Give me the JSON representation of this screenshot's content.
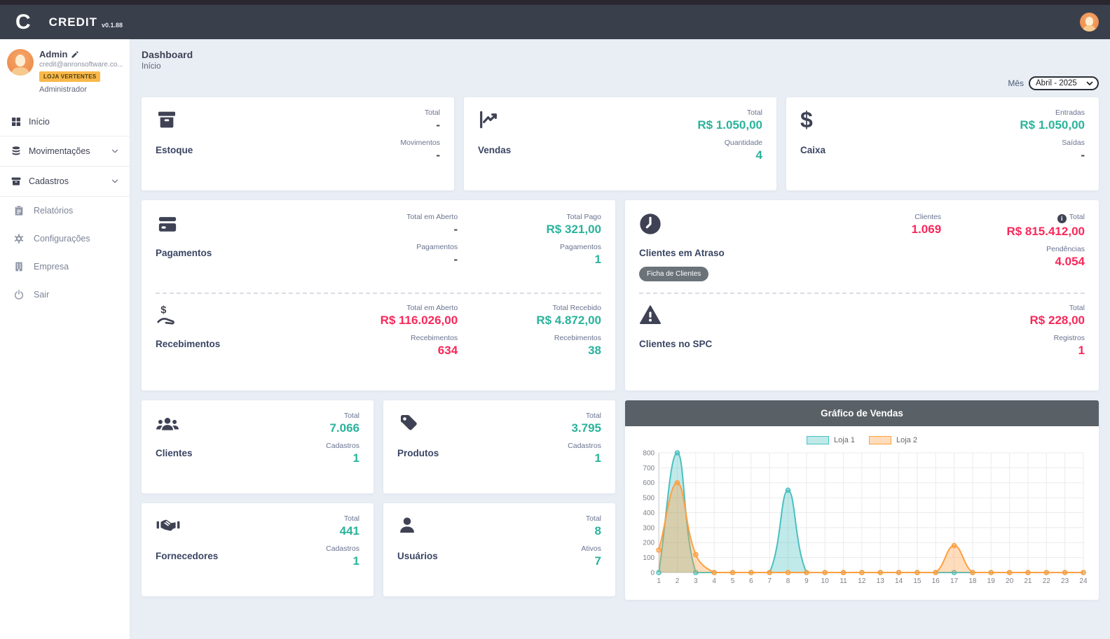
{
  "header": {
    "logo_letter": "C",
    "app_name": "CREDIT",
    "version": "v0.1.88"
  },
  "sidebar": {
    "user": {
      "name": "Admin",
      "email": "credit@anronsoftware.co...",
      "store_badge": "LOJA VERTENTES",
      "role": "Administrador"
    },
    "items": [
      {
        "label": "Início",
        "icon": "grid-icon"
      },
      {
        "label": "Movimentações",
        "icon": "database-icon"
      },
      {
        "label": "Cadastros",
        "icon": "box-icon"
      },
      {
        "label": "Relatórios",
        "icon": "clipboard-icon"
      },
      {
        "label": "Configurações",
        "icon": "gear-icon"
      },
      {
        "label": "Empresa",
        "icon": "building-icon"
      },
      {
        "label": "Sair",
        "icon": "power-icon"
      }
    ]
  },
  "breadcrumb": {
    "title": "Dashboard",
    "subtitle": "Início"
  },
  "filter": {
    "label": "Mês",
    "value": "Abril - 2025"
  },
  "colors": {
    "teal": "#2ab39b",
    "red": "#f8285a",
    "dark": "#3f4254",
    "badge": "#f8b84a"
  },
  "cards": {
    "estoque": {
      "title": "Estoque",
      "stats": [
        {
          "label": "Total",
          "value": "-"
        },
        {
          "label": "Movimentos",
          "value": "-"
        }
      ]
    },
    "vendas": {
      "title": "Vendas",
      "stats": [
        {
          "label": "Total",
          "value": "R$ 1.050,00"
        },
        {
          "label": "Quantidade",
          "value": "4"
        }
      ]
    },
    "caixa": {
      "title": "Caixa",
      "stats": [
        {
          "label": "Entradas",
          "value": "R$ 1.050,00"
        },
        {
          "label": "Saídas",
          "value": "-"
        }
      ]
    },
    "pagamentos": {
      "title": "Pagamentos",
      "col1": [
        {
          "label": "Total em Aberto",
          "value": "-"
        },
        {
          "label": "Pagamentos",
          "value": "-"
        }
      ],
      "col2": [
        {
          "label": "Total Pago",
          "value": "R$ 321,00"
        },
        {
          "label": "Pagamentos",
          "value": "1"
        }
      ]
    },
    "recebimentos": {
      "title": "Recebimentos",
      "col1": [
        {
          "label": "Total em Aberto",
          "value": "R$ 116.026,00"
        },
        {
          "label": "Recebimentos",
          "value": "634"
        }
      ],
      "col2": [
        {
          "label": "Total Recebido",
          "value": "R$ 4.872,00"
        },
        {
          "label": "Recebimentos",
          "value": "38"
        }
      ]
    },
    "clientes_atraso": {
      "title": "Clientes em Atraso",
      "button_label": "Ficha de Clientes",
      "col1": [
        {
          "label": "Clientes",
          "value": "1.069"
        }
      ],
      "col2": [
        {
          "label": "Total",
          "value": "R$ 815.412,00"
        },
        {
          "label": "Pendências",
          "value": "4.054"
        }
      ]
    },
    "clientes_spc": {
      "title": "Clientes no SPC",
      "col2": [
        {
          "label": "Total",
          "value": "R$ 228,00"
        },
        {
          "label": "Registros",
          "value": "1"
        }
      ]
    },
    "clientes": {
      "title": "Clientes",
      "stats": [
        {
          "label": "Total",
          "value": "7.066"
        },
        {
          "label": "Cadastros",
          "value": "1"
        }
      ]
    },
    "produtos": {
      "title": "Produtos",
      "stats": [
        {
          "label": "Total",
          "value": "3.795"
        },
        {
          "label": "Cadastros",
          "value": "1"
        }
      ]
    },
    "fornecedores": {
      "title": "Fornecedores",
      "stats": [
        {
          "label": "Total",
          "value": "441"
        },
        {
          "label": "Cadastros",
          "value": "1"
        }
      ]
    },
    "usuarios": {
      "title": "Usuários",
      "stats": [
        {
          "label": "Total",
          "value": "8"
        },
        {
          "label": "Ativos",
          "value": "7"
        }
      ]
    }
  },
  "chart_data": {
    "type": "area",
    "title": "Gráfico de Vendas",
    "x": [
      1,
      2,
      3,
      4,
      5,
      6,
      7,
      8,
      9,
      10,
      11,
      12,
      13,
      14,
      15,
      16,
      17,
      18,
      19,
      20,
      21,
      22,
      23,
      24
    ],
    "series": [
      {
        "name": "Loja 1",
        "color": "#4bc0c0",
        "fill": "rgba(75,192,192,0.35)",
        "values": [
          0,
          800,
          0,
          0,
          0,
          0,
          0,
          550,
          0,
          0,
          0,
          0,
          0,
          0,
          0,
          0,
          0,
          0,
          0,
          0,
          0,
          0,
          0,
          0
        ]
      },
      {
        "name": "Loja 2",
        "color": "#ff9f40",
        "fill": "rgba(255,159,64,0.35)",
        "values": [
          150,
          600,
          120,
          0,
          0,
          0,
          0,
          0,
          0,
          0,
          0,
          0,
          0,
          0,
          0,
          0,
          180,
          0,
          0,
          0,
          0,
          0,
          0,
          0
        ]
      }
    ],
    "ylim": [
      0,
      800
    ],
    "ytick_step": 100,
    "xlabel": "",
    "ylabel": "",
    "legend_position": "top",
    "grid": true
  }
}
